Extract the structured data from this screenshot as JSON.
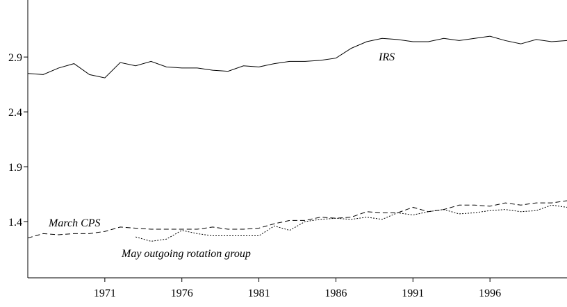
{
  "chart_data": {
    "type": "line",
    "x": [
      1966,
      1967,
      1968,
      1969,
      1970,
      1971,
      1972,
      1973,
      1974,
      1975,
      1976,
      1977,
      1978,
      1979,
      1980,
      1981,
      1982,
      1983,
      1984,
      1985,
      1986,
      1987,
      1988,
      1989,
      1990,
      1991,
      1992,
      1993,
      1994,
      1995,
      1996,
      1997,
      1998,
      1999,
      2000,
      2001
    ],
    "series": [
      {
        "name": "IRS",
        "color": "#000000",
        "dash": "solid",
        "values": [
          2.75,
          2.74,
          2.8,
          2.84,
          2.74,
          2.71,
          2.85,
          2.82,
          2.86,
          2.81,
          2.8,
          2.8,
          2.78,
          2.77,
          2.82,
          2.81,
          2.84,
          2.86,
          2.86,
          2.87,
          2.89,
          2.98,
          3.04,
          3.07,
          3.06,
          3.04,
          3.04,
          3.07,
          3.05,
          3.07,
          3.09,
          3.05,
          3.02,
          3.06,
          3.04,
          3.05
        ]
      },
      {
        "name": "March CPS",
        "color": "#000000",
        "dash": "dashed",
        "values": [
          1.25,
          1.29,
          1.28,
          1.29,
          1.29,
          1.31,
          1.35,
          1.34,
          1.33,
          1.33,
          1.33,
          1.33,
          1.35,
          1.33,
          1.33,
          1.34,
          1.38,
          1.41,
          1.41,
          1.44,
          1.43,
          1.44,
          1.49,
          1.48,
          1.48,
          1.53,
          1.49,
          1.51,
          1.55,
          1.55,
          1.54,
          1.57,
          1.55,
          1.57,
          1.57,
          1.59
        ]
      },
      {
        "name": "May outgoing rotation group",
        "color": "#000000",
        "dash": "dotted",
        "values": [
          null,
          null,
          null,
          null,
          null,
          null,
          null,
          1.26,
          1.22,
          1.24,
          1.32,
          1.29,
          1.27,
          1.27,
          1.27,
          1.27,
          1.36,
          1.32,
          1.4,
          1.42,
          1.43,
          1.42,
          1.44,
          1.42,
          1.48,
          1.46,
          1.49,
          1.51,
          1.47,
          1.48,
          1.5,
          1.51,
          1.49,
          1.5,
          1.55,
          1.53
        ]
      }
    ],
    "xlim": [
      1966,
      2001
    ],
    "ylim": [
      0.887,
      3.42
    ],
    "xticks": [
      1971,
      1976,
      1981,
      1986,
      1991,
      1996
    ],
    "yticks": [
      1.4,
      1.9,
      2.4,
      2.9
    ],
    "grid": false
  }
}
